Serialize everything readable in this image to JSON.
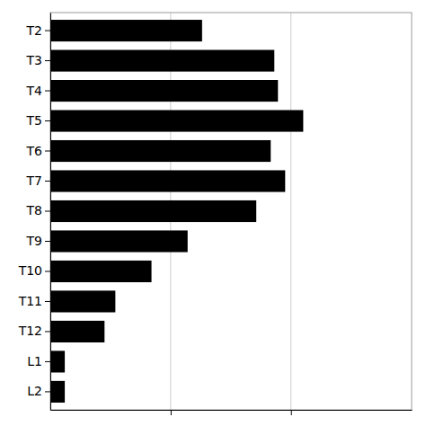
{
  "chart_data": {
    "type": "bar",
    "orientation": "horizontal",
    "categories": [
      "T2",
      "T3",
      "T4",
      "T5",
      "T6",
      "T7",
      "T8",
      "T9",
      "T10",
      "T11",
      "T12",
      "L1",
      "L2"
    ],
    "values": [
      42,
      62,
      63,
      70,
      61,
      65,
      57,
      38,
      28,
      18,
      15,
      4,
      4
    ],
    "color": "#000000",
    "xlim": [
      0,
      100
    ],
    "xticks": [
      33.3,
      66.6
    ],
    "grid": true,
    "tick_labels": "y"
  }
}
